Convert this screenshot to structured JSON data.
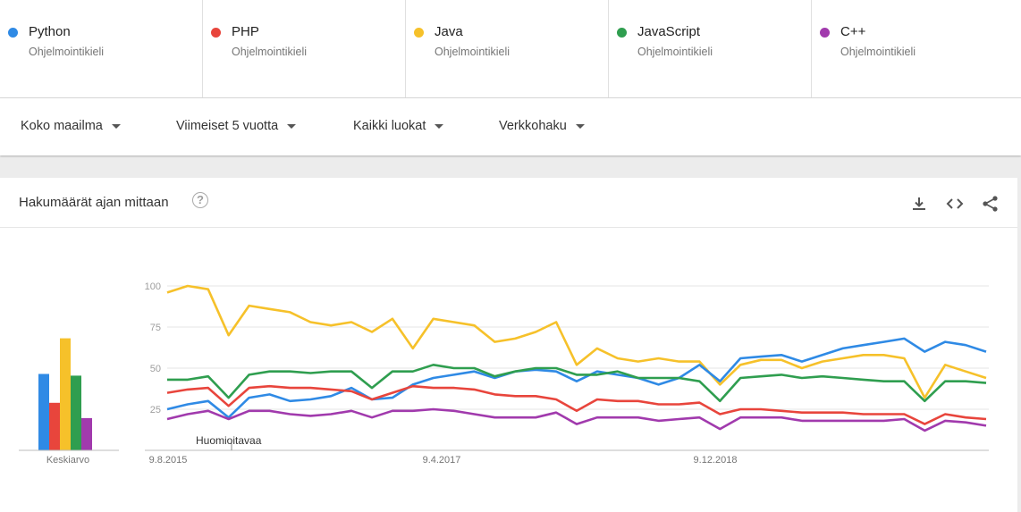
{
  "terms": [
    {
      "name": "Python",
      "subtitle": "Ohjelmointikieli",
      "color": "#2f8ae5"
    },
    {
      "name": "PHP",
      "subtitle": "Ohjelmointikieli",
      "color": "#e8453c"
    },
    {
      "name": "Java",
      "subtitle": "Ohjelmointikieli",
      "color": "#f6c12a"
    },
    {
      "name": "JavaScript",
      "subtitle": "Ohjelmointikieli",
      "color": "#2f9e4f"
    },
    {
      "name": "C++",
      "subtitle": "Ohjelmointikieli",
      "color": "#a13aad"
    }
  ],
  "filters": {
    "region": "Koko maailma",
    "time": "Viimeiset 5 vuotta",
    "category": "Kaikki luokat",
    "search_type": "Verkkohaku"
  },
  "card": {
    "title": "Hakumäärät ajan mittaan",
    "help_icon": "help-circle-icon",
    "tools": [
      "download-icon",
      "embed-code-icon",
      "share-icon"
    ]
  },
  "average_label": "Keskiarvo",
  "note_label": "Huomioitavaa",
  "chart_data": {
    "type": "line",
    "x_ticks": [
      "9.8.2015",
      "9.4.2017",
      "9.12.2018"
    ],
    "y_ticks": [
      25,
      50,
      75,
      100
    ],
    "ylim": [
      0,
      100
    ],
    "grid": true,
    "averages": [
      {
        "name": "Python",
        "value": 45
      },
      {
        "name": "PHP",
        "value": 28
      },
      {
        "name": "Java",
        "value": 66
      },
      {
        "name": "JavaScript",
        "value": 44
      },
      {
        "name": "C++",
        "value": 19
      }
    ],
    "series": [
      {
        "name": "Python",
        "color": "#2f8ae5",
        "values": [
          25,
          28,
          30,
          20,
          32,
          34,
          30,
          31,
          33,
          38,
          31,
          32,
          40,
          44,
          46,
          48,
          44,
          48,
          49,
          48,
          42,
          48,
          46,
          44,
          40,
          44,
          52,
          42,
          56,
          57,
          58,
          54,
          58,
          62,
          64,
          66,
          68,
          60,
          66,
          64,
          60
        ]
      },
      {
        "name": "PHP",
        "color": "#e8453c",
        "values": [
          35,
          37,
          38,
          27,
          38,
          39,
          38,
          38,
          37,
          36,
          31,
          35,
          39,
          38,
          38,
          37,
          34,
          33,
          33,
          31,
          24,
          31,
          30,
          30,
          28,
          28,
          29,
          22,
          25,
          25,
          24,
          23,
          23,
          23,
          22,
          22,
          22,
          16,
          22,
          20,
          19
        ]
      },
      {
        "name": "Java",
        "color": "#f6c12a",
        "values": [
          96,
          100,
          98,
          70,
          88,
          86,
          84,
          78,
          76,
          78,
          72,
          80,
          62,
          80,
          78,
          76,
          66,
          68,
          72,
          78,
          52,
          62,
          56,
          54,
          56,
          54,
          54,
          40,
          52,
          55,
          55,
          50,
          54,
          56,
          58,
          58,
          56,
          32,
          52,
          48,
          44
        ]
      },
      {
        "name": "JavaScript",
        "color": "#2f9e4f",
        "values": [
          43,
          43,
          45,
          32,
          46,
          48,
          48,
          47,
          48,
          48,
          38,
          48,
          48,
          52,
          50,
          50,
          45,
          48,
          50,
          50,
          46,
          46,
          48,
          44,
          44,
          44,
          42,
          30,
          44,
          45,
          46,
          44,
          45,
          44,
          43,
          42,
          42,
          30,
          42,
          42,
          41
        ]
      },
      {
        "name": "C++",
        "color": "#a13aad",
        "values": [
          19,
          22,
          24,
          19,
          24,
          24,
          22,
          21,
          22,
          24,
          20,
          24,
          24,
          25,
          24,
          22,
          20,
          20,
          20,
          23,
          16,
          20,
          20,
          20,
          18,
          19,
          20,
          13,
          20,
          20,
          20,
          18,
          18,
          18,
          18,
          18,
          19,
          12,
          18,
          17,
          15
        ]
      }
    ]
  }
}
